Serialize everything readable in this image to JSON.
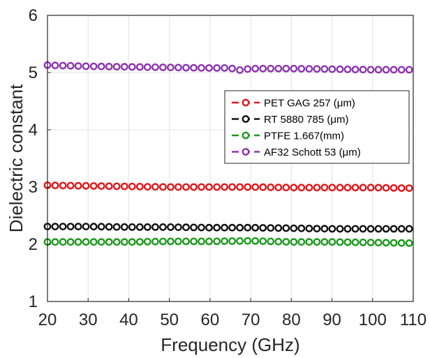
{
  "chart_data": {
    "type": "scatter",
    "xlabel": "Frequency (GHz)",
    "ylabel": "Dielectric constant",
    "xlim": [
      20,
      110
    ],
    "ylim": [
      1,
      6
    ],
    "xticks": [
      "20",
      "30",
      "40",
      "50",
      "60",
      "70",
      "80",
      "90",
      "100",
      "110"
    ],
    "yticks": [
      "1",
      "2",
      "3",
      "4",
      "5",
      "6"
    ],
    "grid": true,
    "legend_position": "top-right",
    "x_range": [
      20,
      109
    ],
    "marker": "open-circle",
    "series": [
      {
        "name": "PET GAG 257 (μm)",
        "color": "#e0191c",
        "x": [
          20,
          30,
          40,
          50,
          60,
          70,
          80,
          90,
          100,
          109
        ],
        "y": [
          3.03,
          3.02,
          3.01,
          3.0,
          3.0,
          3.0,
          2.99,
          2.99,
          2.99,
          2.98
        ]
      },
      {
        "name": "RT 5880 785 (μm)",
        "color": "#111111",
        "x": [
          20,
          30,
          40,
          50,
          60,
          70,
          80,
          90,
          100,
          109
        ],
        "y": [
          2.31,
          2.31,
          2.3,
          2.3,
          2.29,
          2.29,
          2.28,
          2.27,
          2.27,
          2.27
        ]
      },
      {
        "name": "PTFE 1.667(mm)",
        "color": "#1e9a1e",
        "x": [
          20,
          30,
          40,
          50,
          60,
          70,
          80,
          90,
          100,
          109
        ],
        "y": [
          2.04,
          2.04,
          2.04,
          2.05,
          2.05,
          2.06,
          2.04,
          2.04,
          2.03,
          2.02
        ]
      },
      {
        "name": "AF32 Schott 53 (μm)",
        "color": "#8d35b0",
        "x": [
          20,
          30,
          40,
          50,
          60,
          65,
          67,
          70,
          80,
          90,
          100,
          109
        ],
        "y": [
          5.13,
          5.11,
          5.1,
          5.09,
          5.08,
          5.08,
          5.04,
          5.07,
          5.07,
          5.06,
          5.05,
          5.05
        ]
      }
    ]
  }
}
